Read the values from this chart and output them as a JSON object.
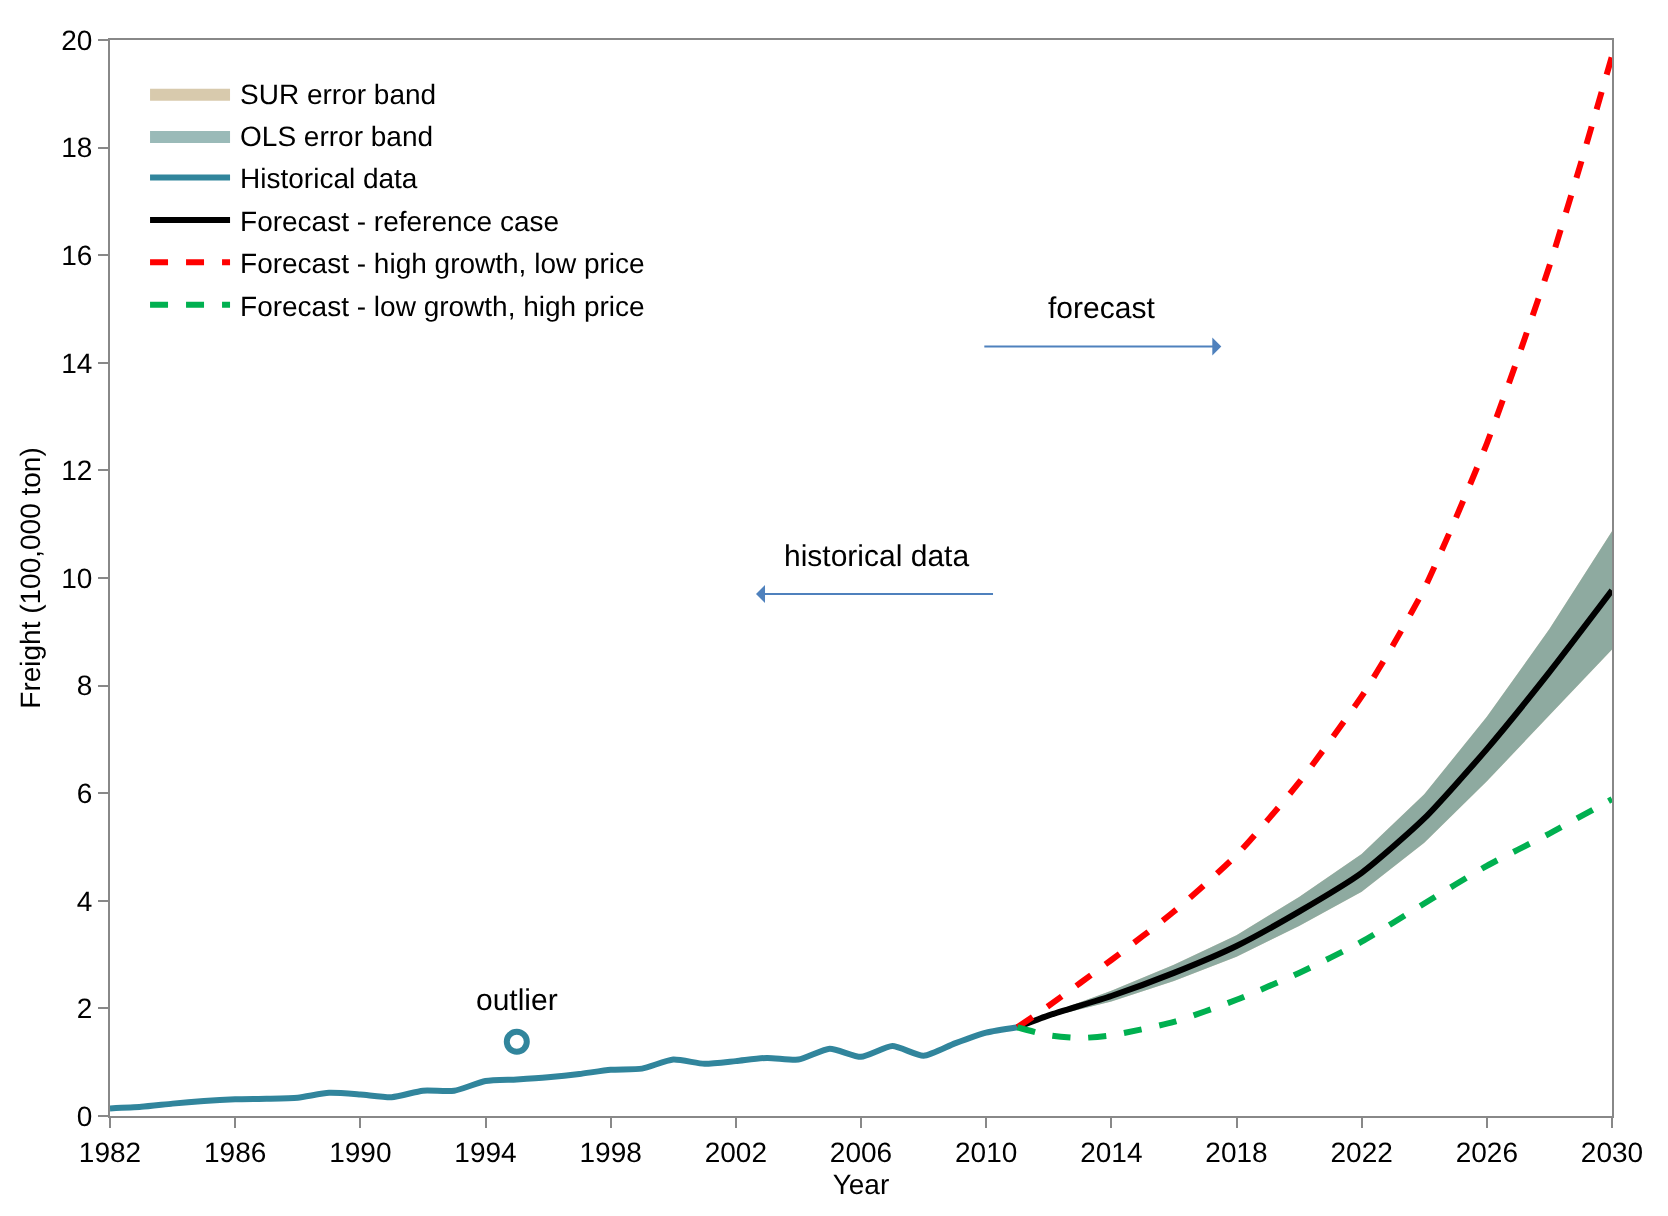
{
  "chart_data": {
    "type": "line",
    "xlabel": "Year",
    "ylabel": "Freight (100,000 ton)",
    "xlim": [
      1982,
      2030
    ],
    "xticks": [
      1982,
      1986,
      1990,
      1994,
      1998,
      2002,
      2006,
      2010,
      2014,
      2018,
      2022,
      2026,
      2030
    ],
    "ylim": [
      0,
      20
    ],
    "yticks": [
      0,
      2,
      4,
      6,
      8,
      10,
      12,
      14,
      16,
      18,
      20
    ],
    "legend": "top left",
    "series": [
      {
        "name": "SUR error band",
        "type": "area",
        "color": "#c8b48a"
      },
      {
        "name": "OLS error band",
        "type": "area",
        "color": "#6f9d9a"
      },
      {
        "name": "Historical data",
        "color": "#31859c",
        "line_style": "solid",
        "x": [
          1982,
          1983,
          1984,
          1985,
          1986,
          1987,
          1988,
          1989,
          1990,
          1991,
          1992,
          1993,
          1994,
          1995,
          1996,
          1997,
          1998,
          1999,
          2000,
          2001,
          2002,
          2003,
          2004,
          2005,
          2006,
          2007,
          2008,
          2009,
          2010,
          2011
        ],
        "values": [
          0.14,
          0.17,
          0.23,
          0.28,
          0.31,
          0.32,
          0.34,
          0.43,
          0.4,
          0.35,
          0.47,
          0.47,
          0.65,
          0.68,
          0.72,
          0.78,
          0.86,
          0.88,
          1.05,
          0.97,
          1.02,
          1.08,
          1.05,
          1.25,
          1.1,
          1.3,
          1.12,
          1.35,
          1.55,
          1.65
        ]
      },
      {
        "type": "scatter",
        "color": "#31859c",
        "marker": "circle",
        "x": [
          1995
        ],
        "values": [
          1.38
        ]
      },
      {
        "name": "Forecast - reference case",
        "color": "#000000",
        "line_style": "solid",
        "x": [
          2011,
          2012,
          2014,
          2016,
          2018,
          2020,
          2022,
          2024,
          2026,
          2028,
          2030
        ],
        "values": [
          1.65,
          1.87,
          2.23,
          2.66,
          3.16,
          3.8,
          4.52,
          5.53,
          6.82,
          8.25,
          9.77
        ],
        "upper": [
          1.65,
          1.9,
          2.33,
          2.81,
          3.36,
          4.07,
          4.87,
          5.98,
          7.42,
          9.05,
          10.87
        ],
        "lower": [
          1.65,
          1.84,
          2.13,
          2.51,
          2.96,
          3.53,
          4.17,
          5.08,
          6.22,
          7.45,
          8.67
        ]
      },
      {
        "name": "Forecast - high growth, low price",
        "color": "#ff0000",
        "line_style": "dashed",
        "x": [
          2011,
          2012,
          2014,
          2016,
          2018,
          2020,
          2022,
          2023,
          2024,
          2025,
          2026,
          2027,
          2028,
          2029,
          2030
        ],
        "values": [
          1.65,
          2.05,
          2.9,
          3.8,
          4.85,
          6.2,
          7.8,
          8.75,
          9.8,
          11.1,
          12.5,
          14.1,
          15.8,
          17.7,
          19.7
        ]
      },
      {
        "name": "Forecast - low growth, high price",
        "color": "#00b050",
        "line_style": "dashed",
        "x": [
          2011,
          2012,
          2013,
          2014,
          2016,
          2018,
          2020,
          2022,
          2024,
          2026,
          2028,
          2030
        ],
        "values": [
          1.65,
          1.5,
          1.45,
          1.5,
          1.75,
          2.16,
          2.66,
          3.24,
          3.95,
          4.65,
          5.25,
          5.89
        ]
      }
    ],
    "annotations": [
      {
        "text": "outlier",
        "x": 1995,
        "y": 1.75
      },
      "forecast",
      "historical data"
    ]
  }
}
